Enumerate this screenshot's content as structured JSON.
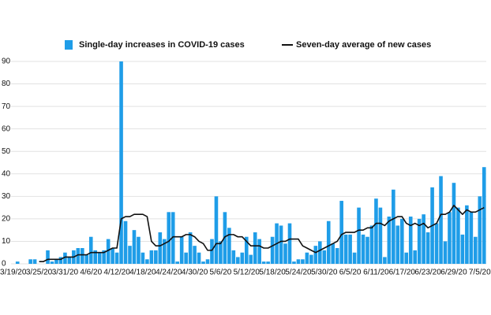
{
  "chart_data": {
    "type": "bar",
    "categories": [
      "3/19/20",
      null,
      null,
      null,
      null,
      null,
      "3/25/20",
      null,
      null,
      null,
      null,
      null,
      "3/31/20",
      null,
      null,
      null,
      null,
      null,
      "4/6/20",
      null,
      null,
      null,
      null,
      null,
      "4/12/20",
      null,
      null,
      null,
      null,
      null,
      "4/18/20",
      null,
      null,
      null,
      null,
      null,
      "4/24/20",
      null,
      null,
      null,
      null,
      null,
      "4/30/20",
      null,
      null,
      null,
      null,
      null,
      "5/6/20",
      null,
      null,
      null,
      null,
      null,
      "5/12/20",
      null,
      null,
      null,
      null,
      null,
      "5/18/20",
      null,
      null,
      null,
      null,
      null,
      "5/24/20",
      null,
      null,
      null,
      null,
      null,
      "5/30/20",
      null,
      null,
      null,
      null,
      null,
      "6/5/20",
      null,
      null,
      null,
      null,
      null,
      "6/11/20",
      null,
      null,
      null,
      null,
      null,
      "6/17/20",
      null,
      null,
      null,
      null,
      null,
      "6/23/20",
      null,
      null,
      null,
      null,
      null,
      "6/29/20",
      null,
      null,
      null,
      null,
      null,
      "7/5/20",
      null
    ],
    "series": [
      {
        "name": "Single-day increases in COVID-19 cases",
        "type": "bar",
        "color": "#1f9de8",
        "values": [
          0,
          1,
          0,
          0,
          2,
          2,
          0,
          0,
          6,
          1,
          2,
          3,
          5,
          3,
          6,
          7,
          7,
          4,
          12,
          6,
          5,
          6,
          11,
          7,
          5,
          90,
          19,
          8,
          15,
          12,
          5,
          2,
          6,
          6,
          14,
          11,
          23,
          23,
          1,
          12,
          5,
          14,
          8,
          5,
          1,
          2,
          11,
          30,
          10,
          23,
          16,
          6,
          3,
          5,
          12,
          4,
          14,
          11,
          1,
          1,
          12,
          18,
          17,
          9,
          18,
          1,
          2,
          2,
          5,
          4,
          8,
          10,
          6,
          19,
          9,
          7,
          28,
          13,
          13,
          5,
          25,
          13,
          12,
          17,
          29,
          25,
          3,
          21,
          33,
          17,
          20,
          5,
          21,
          6,
          20,
          22,
          14,
          34,
          18,
          39,
          10,
          23,
          36,
          25,
          13,
          26,
          23,
          12,
          30,
          43
        ]
      },
      {
        "name": "Seven-day average of new cases",
        "type": "line",
        "color": "#111111",
        "values": [
          null,
          null,
          null,
          null,
          null,
          null,
          1,
          1,
          2,
          2,
          2,
          2,
          3,
          3,
          3,
          4,
          4,
          4,
          5,
          5,
          5,
          5,
          6,
          7,
          7,
          20,
          21,
          21,
          22,
          22,
          22,
          21,
          10,
          8,
          8,
          9,
          10,
          12,
          12,
          12,
          13,
          13,
          12,
          10,
          9,
          6,
          6,
          9,
          9,
          12,
          13,
          13,
          12,
          12,
          10,
          8,
          8,
          8,
          7,
          7,
          8,
          9,
          10,
          10,
          11,
          11,
          11,
          8,
          7,
          6,
          5,
          6,
          7,
          8,
          9,
          10,
          13,
          14,
          14,
          14,
          15,
          15,
          16,
          16,
          18,
          18,
          17,
          19,
          20,
          21,
          21,
          18,
          17,
          18,
          17,
          18,
          16,
          17,
          18,
          22,
          22,
          23,
          26,
          24,
          22,
          24,
          23,
          23,
          24,
          25
        ]
      }
    ],
    "ylim": [
      0,
      90
    ],
    "yticks": [
      0,
      10,
      20,
      30,
      40,
      50,
      60,
      70,
      80,
      90
    ],
    "grid": true
  }
}
